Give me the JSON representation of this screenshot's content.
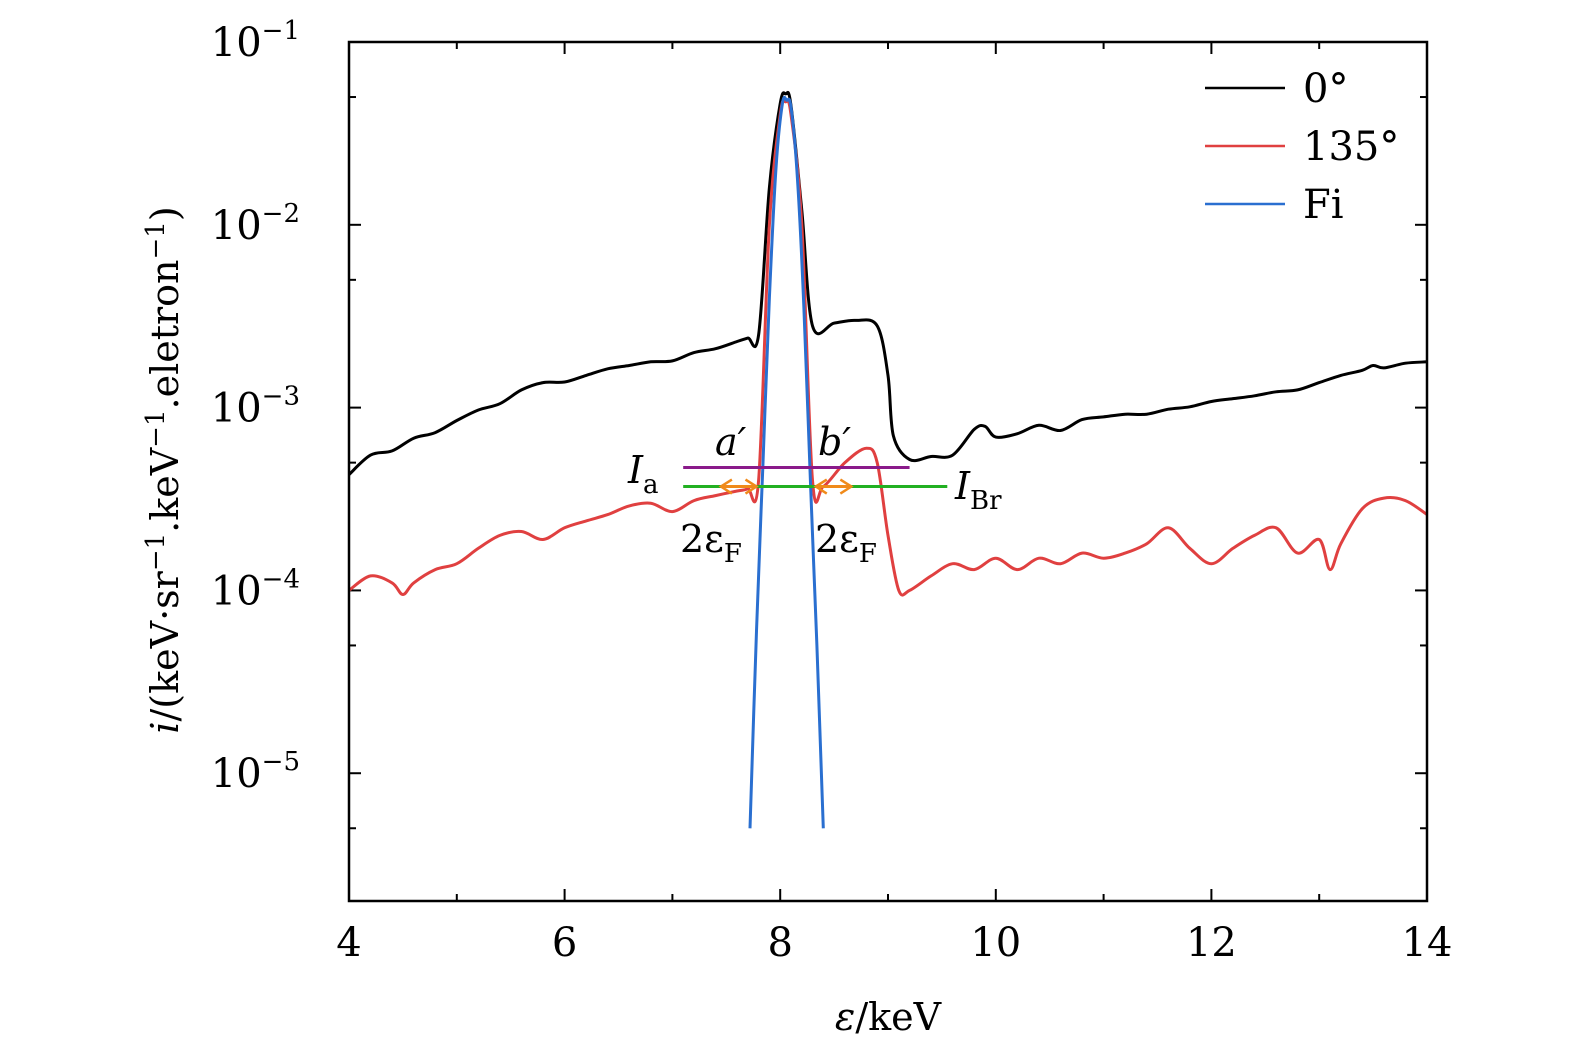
{
  "chart_data": {
    "type": "line",
    "title": "",
    "xlabel": "ε/keV",
    "ylabel": "i/(keV·sr⁻¹·keV⁻¹·eletron⁻¹)",
    "ylabel_parts": {
      "var": "i",
      "open": "/(keV·sr",
      "sup1": "−1",
      "mid1": ".keV",
      "sup2": "−1",
      "mid2": ".eletron",
      "sup3": "−1",
      "close": ")"
    },
    "xlabel_parts": {
      "var": "ε",
      "unit": "/keV"
    },
    "xlim": [
      4,
      14
    ],
    "ylim": [
      2e-06,
      0.1
    ],
    "yscale": "log",
    "x_ticks": [
      {
        "value": 4,
        "label": "4"
      },
      {
        "value": 6,
        "label": "6"
      },
      {
        "value": 8,
        "label": "8"
      },
      {
        "value": 10,
        "label": "10"
      },
      {
        "value": 12,
        "label": "12"
      },
      {
        "value": 14,
        "label": "14"
      }
    ],
    "y_ticks": [
      {
        "value": 0.1,
        "base": "10",
        "exp": "−1"
      },
      {
        "value": 0.01,
        "base": "10",
        "exp": "−2"
      },
      {
        "value": 0.001,
        "base": "10",
        "exp": "−3"
      },
      {
        "value": 0.0001,
        "base": "10",
        "exp": "−4"
      },
      {
        "value": 1e-05,
        "base": "10",
        "exp": "−5"
      }
    ],
    "legend": {
      "position": "top-right"
    },
    "series": [
      {
        "name": "0°",
        "color": "#000000",
        "x": [
          4.0,
          4.2,
          4.4,
          4.6,
          4.8,
          5.0,
          5.2,
          5.4,
          5.6,
          5.8,
          6.0,
          6.2,
          6.4,
          6.6,
          6.8,
          7.0,
          7.2,
          7.4,
          7.6,
          7.7,
          7.8,
          7.9,
          8.0,
          8.05,
          8.1,
          8.2,
          8.3,
          8.5,
          8.7,
          8.9,
          9.0,
          9.05,
          9.2,
          9.4,
          9.6,
          9.8,
          9.9,
          10.0,
          10.2,
          10.4,
          10.6,
          10.8,
          11.0,
          11.2,
          11.4,
          11.6,
          11.8,
          12.0,
          12.2,
          12.4,
          12.6,
          12.8,
          13.0,
          13.2,
          13.4,
          13.5,
          13.6,
          13.8,
          14.0
        ],
        "y": [
          0.00043,
          0.00055,
          0.00058,
          0.00068,
          0.00073,
          0.00085,
          0.00097,
          0.00105,
          0.00125,
          0.00137,
          0.00138,
          0.0015,
          0.00163,
          0.0017,
          0.00178,
          0.0018,
          0.002,
          0.0021,
          0.0023,
          0.0024,
          0.0025,
          0.016,
          0.046,
          0.052,
          0.045,
          0.012,
          0.0028,
          0.0029,
          0.003,
          0.0028,
          0.0015,
          0.0007,
          0.00052,
          0.00054,
          0.00055,
          0.00076,
          0.00079,
          0.00069,
          0.00072,
          0.0008,
          0.00075,
          0.00086,
          0.00089,
          0.00092,
          0.00092,
          0.00098,
          0.00101,
          0.00108,
          0.00112,
          0.00116,
          0.00122,
          0.00125,
          0.00137,
          0.0015,
          0.0016,
          0.0017,
          0.00165,
          0.00175,
          0.00178
        ]
      },
      {
        "name": "135°",
        "color": "#e04040",
        "x": [
          4.0,
          4.2,
          4.4,
          4.5,
          4.6,
          4.8,
          5.0,
          5.2,
          5.4,
          5.6,
          5.8,
          6.0,
          6.2,
          6.4,
          6.6,
          6.8,
          7.0,
          7.2,
          7.4,
          7.6,
          7.7,
          7.8,
          7.9,
          8.0,
          8.05,
          8.1,
          8.2,
          8.3,
          8.4,
          8.6,
          8.8,
          8.9,
          9.0,
          9.1,
          9.2,
          9.4,
          9.6,
          9.8,
          10.0,
          10.2,
          10.4,
          10.6,
          10.8,
          11.0,
          11.2,
          11.4,
          11.6,
          11.8,
          12.0,
          12.2,
          12.4,
          12.6,
          12.8,
          13.0,
          13.1,
          13.2,
          13.4,
          13.6,
          13.8,
          14.0
        ],
        "y": [
          0.0001,
          0.00012,
          0.00011,
          9.5e-05,
          0.00011,
          0.00013,
          0.00014,
          0.00017,
          0.0002,
          0.00021,
          0.00019,
          0.00022,
          0.00024,
          0.00026,
          0.00029,
          0.0003,
          0.00027,
          0.00031,
          0.00033,
          0.00035,
          0.00036,
          0.0004,
          0.01,
          0.04,
          0.047,
          0.04,
          0.01,
          0.0004,
          0.00037,
          0.0005,
          0.0006,
          0.0005,
          0.0002,
          0.0001,
          0.0001,
          0.00012,
          0.00014,
          0.00013,
          0.00015,
          0.00013,
          0.00015,
          0.00014,
          0.00016,
          0.00015,
          0.00016,
          0.00018,
          0.00022,
          0.00017,
          0.00014,
          0.00017,
          0.0002,
          0.00022,
          0.00016,
          0.00019,
          0.00013,
          0.00018,
          0.00028,
          0.00032,
          0.00031,
          0.00026
        ]
      },
      {
        "name": "Fi",
        "color": "#2a6fd0",
        "x": [
          7.72,
          7.78,
          7.84,
          7.9,
          7.96,
          8.02,
          8.06,
          8.1,
          8.16,
          8.22,
          8.28,
          8.34,
          8.4
        ],
        "y": [
          5e-06,
          6e-05,
          0.0005,
          0.004,
          0.02,
          0.046,
          0.048,
          0.044,
          0.018,
          0.0035,
          0.0004,
          5e-05,
          5e-06
        ]
      }
    ],
    "annotations": {
      "purple_line": {
        "x": [
          7.1,
          9.2
        ],
        "y": 0.00047,
        "color": "#8a1a8a"
      },
      "green_line": {
        "x": [
          7.1,
          9.55
        ],
        "y": 0.00037,
        "color": "#22b022"
      },
      "arrow_color": "#f08a1a",
      "arrow_left": [
        7.45,
        7.78
      ],
      "arrow_right": [
        8.33,
        8.66
      ],
      "label_Ia": {
        "main": "I",
        "sub": "a"
      },
      "label_IBr": {
        "main": "I",
        "sub": "Br"
      },
      "label_a": "a′",
      "label_b": "b′",
      "label_2eF_left": {
        "main": "2ε",
        "sub": "F"
      },
      "label_2eF_right": {
        "main": "2ε",
        "sub": "F"
      }
    }
  }
}
